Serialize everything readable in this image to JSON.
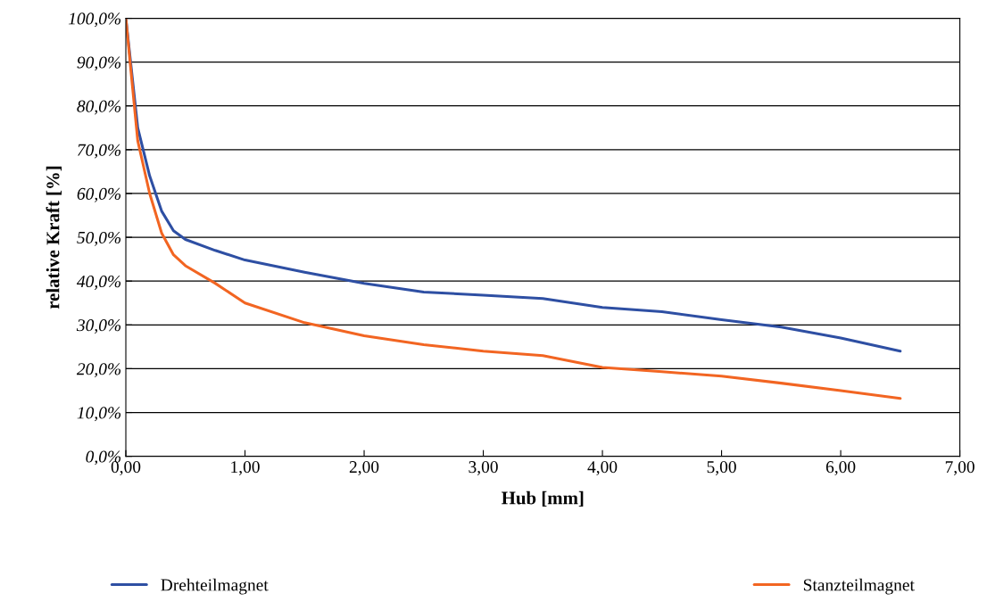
{
  "chart_data": {
    "type": "line",
    "xlabel": "Hub [mm]",
    "ylabel": "relative Kraft [%]",
    "xlim": [
      0,
      7
    ],
    "ylim": [
      0,
      100
    ],
    "xticks": [
      {
        "value": 0,
        "label": "0,00"
      },
      {
        "value": 1,
        "label": "1,00"
      },
      {
        "value": 2,
        "label": "2,00"
      },
      {
        "value": 3,
        "label": "3,00"
      },
      {
        "value": 4,
        "label": "4,00"
      },
      {
        "value": 5,
        "label": "5,00"
      },
      {
        "value": 6,
        "label": "6,00"
      },
      {
        "value": 7,
        "label": "7,00"
      }
    ],
    "yticks": [
      {
        "value": 0,
        "label": "0,0%"
      },
      {
        "value": 10,
        "label": "10,0%"
      },
      {
        "value": 20,
        "label": "20,0%"
      },
      {
        "value": 30,
        "label": "30,0%"
      },
      {
        "value": 40,
        "label": "40,0%"
      },
      {
        "value": 50,
        "label": "50,0%"
      },
      {
        "value": 60,
        "label": "60,0%"
      },
      {
        "value": 70,
        "label": "70,0%"
      },
      {
        "value": 80,
        "label": "80,0%"
      },
      {
        "value": 90,
        "label": "90,0%"
      },
      {
        "value": 100,
        "label": "100,0%"
      }
    ],
    "grid": "y",
    "legend": "bottom",
    "x": [
      0,
      0.1,
      0.2,
      0.3,
      0.4,
      0.5,
      0.75,
      1.0,
      1.5,
      2.0,
      2.5,
      3.0,
      3.5,
      4.0,
      4.5,
      5.0,
      5.5,
      6.0,
      6.5
    ],
    "series": [
      {
        "name": "Drehteilmagnet",
        "color": "#2e4fa3",
        "values": [
          100,
          75,
          64,
          56,
          51.5,
          49.5,
          47,
          44.8,
          42,
          39.5,
          37.5,
          36.8,
          36,
          34,
          33,
          31.2,
          29.5,
          27,
          24
        ]
      },
      {
        "name": "Stanzteilmagnet",
        "color": "#f26522",
        "values": [
          100,
          72,
          60,
          51,
          46,
          43.5,
          39.5,
          35,
          30.5,
          27.5,
          25.5,
          24,
          23,
          20.3,
          19.3,
          18.3,
          16.7,
          15,
          13.2
        ]
      }
    ]
  }
}
